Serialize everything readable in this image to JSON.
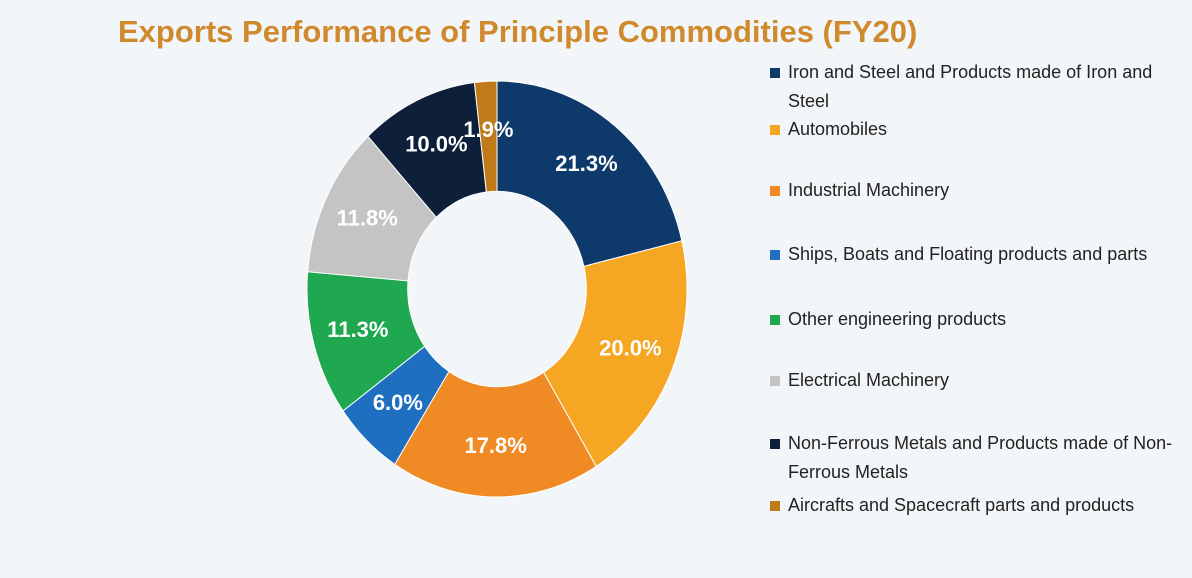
{
  "chart_data": {
    "type": "donut",
    "title": "Exports Performance of Principle Commodities (FY20)",
    "categories": [
      "Iron and Steel and Products made of Iron and Steel",
      "Automobiles",
      "Industrial Machinery",
      "Ships, Boats and Floating products and parts",
      "Other engineering products",
      "Electrical Machinery",
      "Non-Ferrous Metals and Products made of Non-Ferrous Metals",
      "Aircrafts and Spacecraft parts and products"
    ],
    "values": [
      21.3,
      20.0,
      17.8,
      6.0,
      11.3,
      11.8,
      10.0,
      1.9
    ],
    "value_labels": [
      "21.3%",
      "20.0%",
      "17.8%",
      "6.0%",
      "11.3%",
      "11.8%",
      "10.0%",
      "1.9%"
    ],
    "colors": [
      "#0d3a6b",
      "#f5a623",
      "#f08a24",
      "#1f6fc1",
      "#1fa84f",
      "#c4c4c4",
      "#0e1f3a",
      "#c07a1a"
    ],
    "legend": "right"
  }
}
